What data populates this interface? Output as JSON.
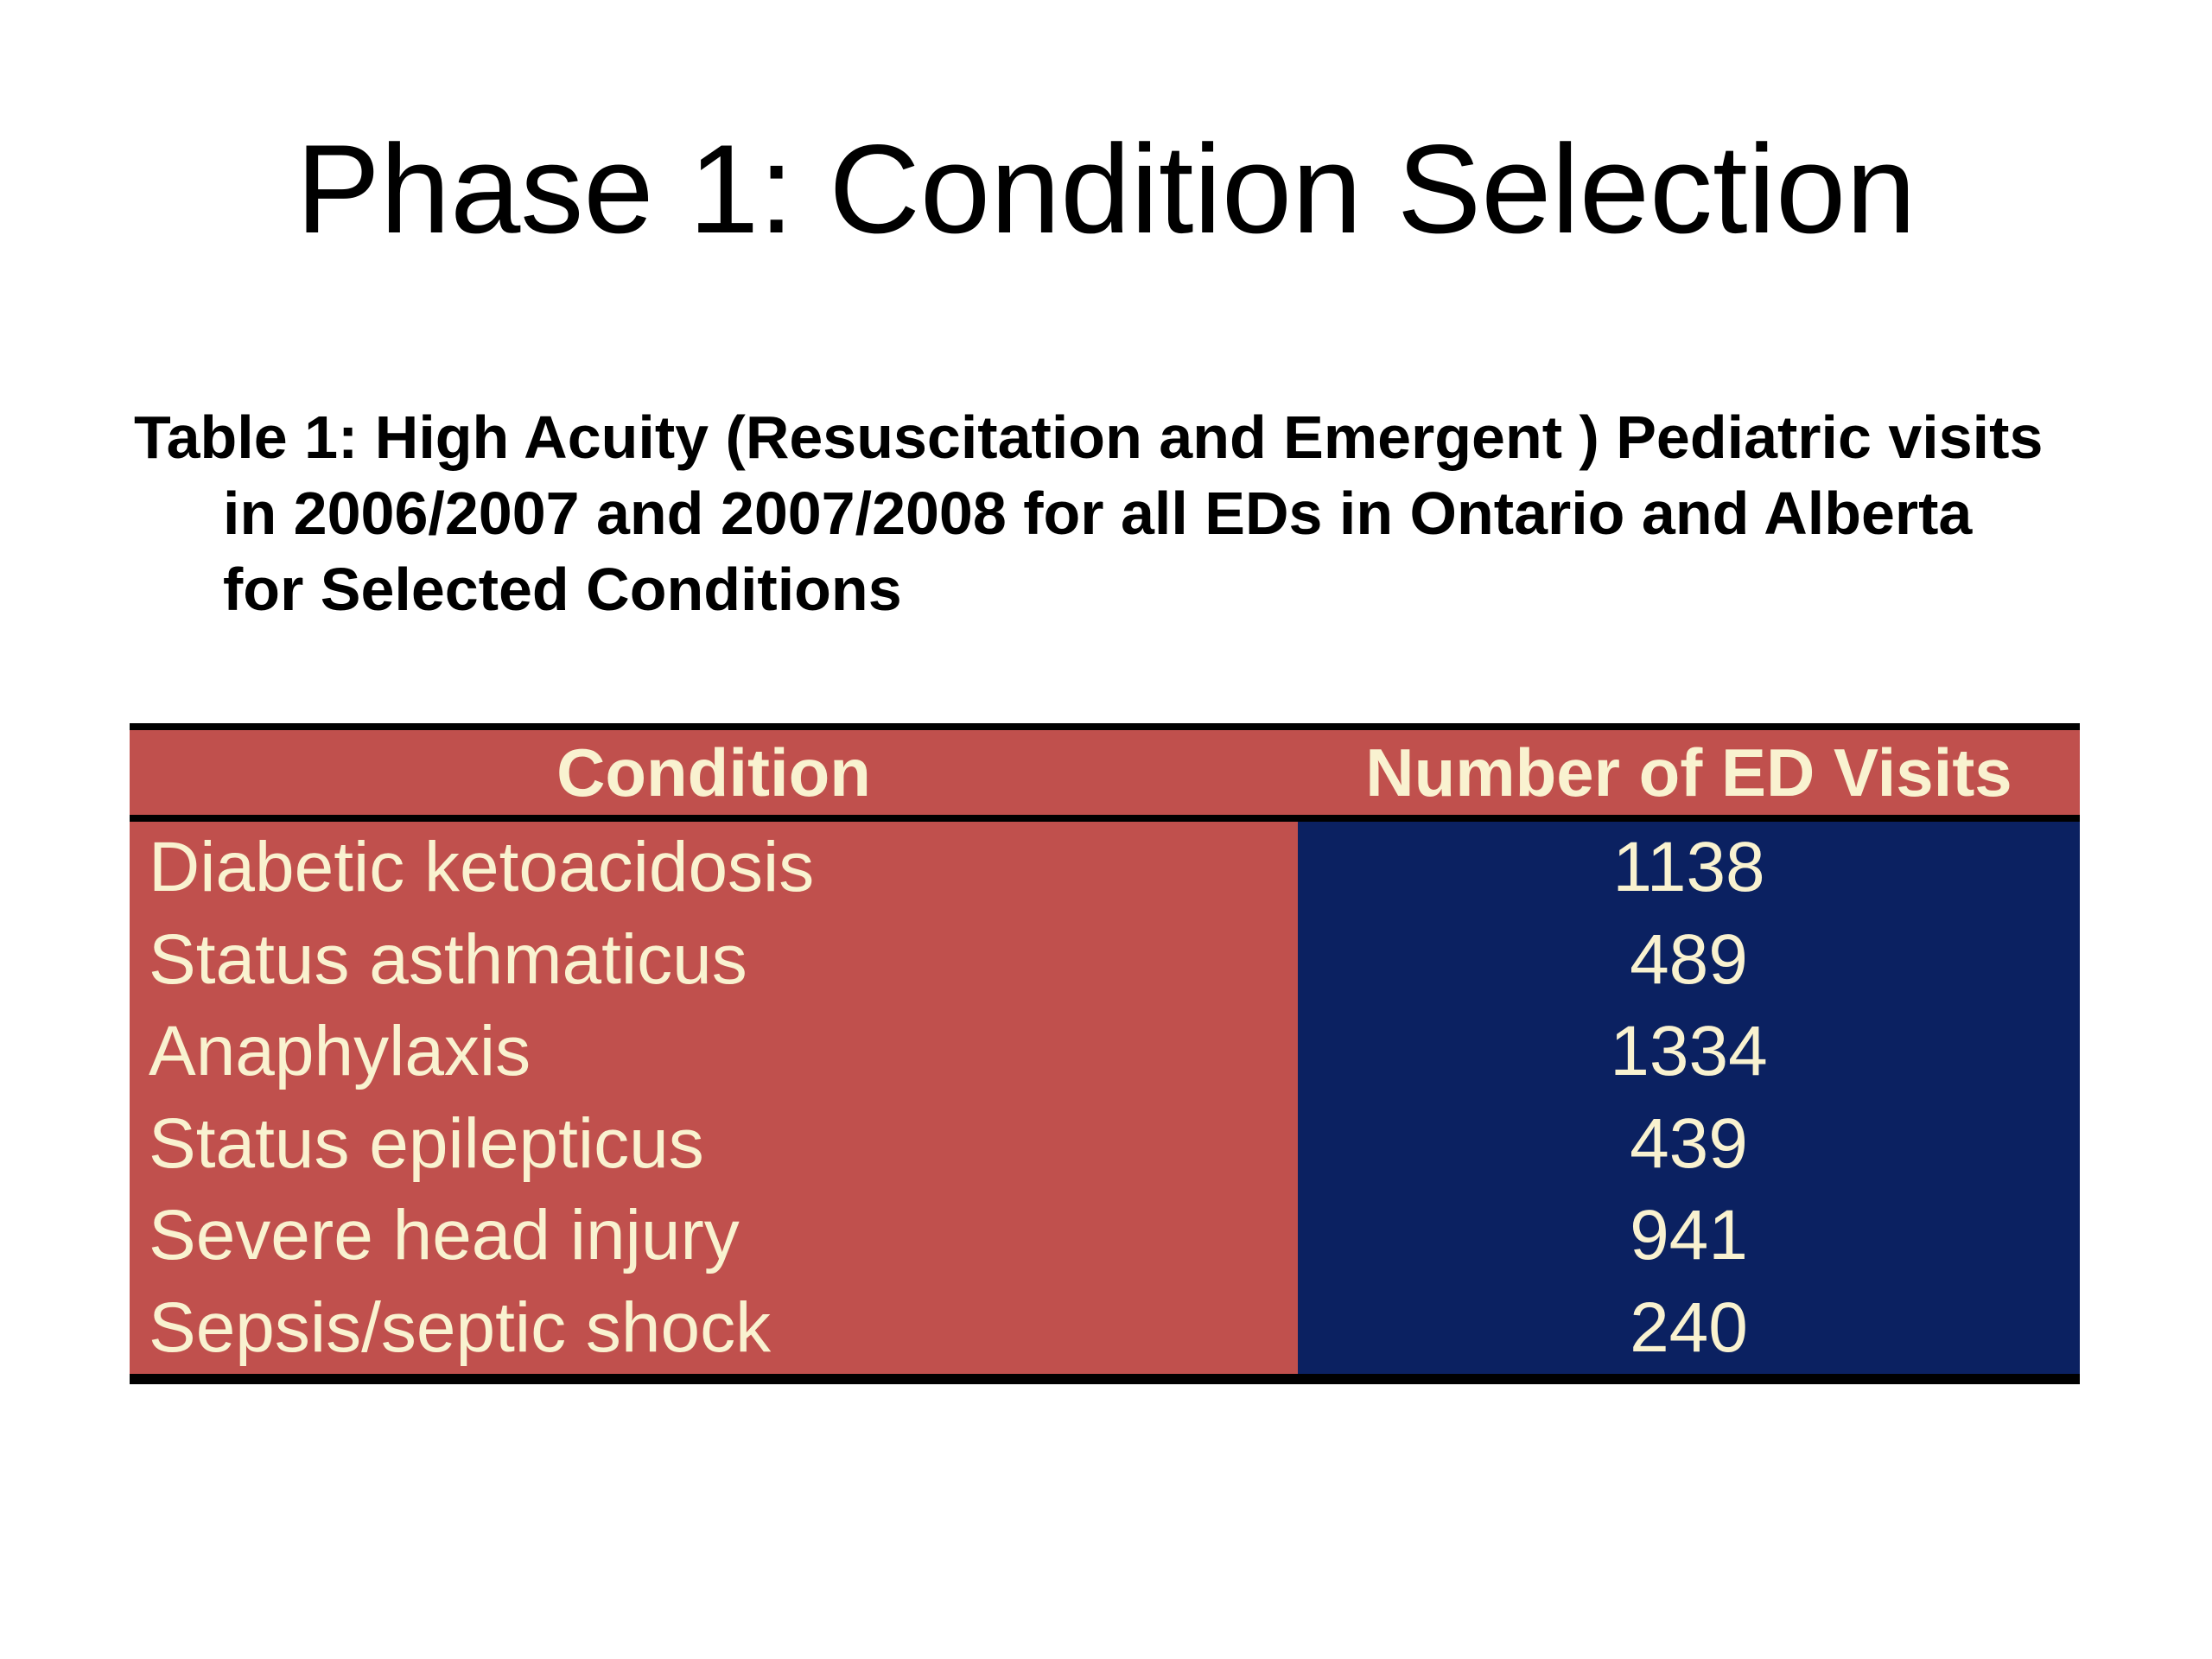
{
  "title": "Phase 1: Condition Selection",
  "caption": {
    "lines": [
      "Table 1: High Acuity (Resuscitation and Emergent ) Pediatric visits",
      "in 2006/2007 and 2007/2008 for all EDs in Ontario and Alberta",
      "for Selected Conditions"
    ]
  },
  "table": {
    "headers": {
      "condition": "Condition",
      "visits": "Number of ED Visits"
    },
    "rows": [
      {
        "condition": "Diabetic ketoacidosis",
        "visits": "1138"
      },
      {
        "condition": "Status asthmaticus",
        "visits": "489"
      },
      {
        "condition": "Anaphylaxis",
        "visits": "1334"
      },
      {
        "condition": "Status epilepticus",
        "visits": "439"
      },
      {
        "condition": "Severe head injury",
        "visits": "941"
      },
      {
        "condition": "Sepsis/septic shock",
        "visits": "240"
      }
    ]
  },
  "colors": {
    "red": "#c0504d",
    "navy": "#0b2161",
    "cream": "#f9f2d0",
    "border": "#000000",
    "text": "#000000",
    "background": "#ffffff"
  }
}
